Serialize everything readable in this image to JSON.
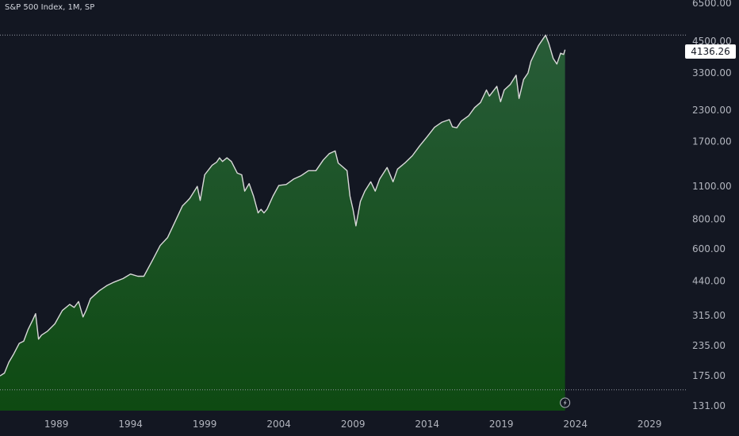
{
  "header": {
    "title": "S&P 500 Index, 1M, SP"
  },
  "last_price_label": "4136.26",
  "colors": {
    "background": "#131722",
    "line": "#d9d9d9",
    "fill_top": "#285c38",
    "fill_bottom": "#0e4a12",
    "axis_text": "#b2b5be",
    "dotted": "#9598a1"
  },
  "icons": {
    "bottom_marker": "lightning-bolt-icon"
  },
  "chart_data": {
    "type": "area",
    "yscale": "log",
    "ylim": [
      125,
      6700
    ],
    "xlim": [
      1985.2,
      2031.5
    ],
    "grid": false,
    "y_ticks": [
      {
        "value": 6500,
        "label": "6500.00"
      },
      {
        "value": 4500,
        "label": "4500.00"
      },
      {
        "value": 3300,
        "label": "3300.00"
      },
      {
        "value": 2300,
        "label": "2300.00"
      },
      {
        "value": 1700,
        "label": "1700.00"
      },
      {
        "value": 1100,
        "label": "1100.00"
      },
      {
        "value": 800,
        "label": "800.00"
      },
      {
        "value": 600,
        "label": "600.00"
      },
      {
        "value": 440,
        "label": "440.00"
      },
      {
        "value": 315,
        "label": "315.00"
      },
      {
        "value": 235,
        "label": "235.00"
      },
      {
        "value": 175,
        "label": "175.00"
      },
      {
        "value": 131,
        "label": "131.00"
      }
    ],
    "x_ticks": [
      {
        "value": 1989,
        "label": "1989"
      },
      {
        "value": 1994,
        "label": "1994"
      },
      {
        "value": 1999,
        "label": "1999"
      },
      {
        "value": 2004,
        "label": "2004"
      },
      {
        "value": 2009,
        "label": "2009"
      },
      {
        "value": 2014,
        "label": "2014"
      },
      {
        "value": 2019,
        "label": "2019"
      },
      {
        "value": 2024,
        "label": "2024"
      },
      {
        "value": 2029,
        "label": "2029"
      }
    ],
    "reference_lines": [
      {
        "value": 4766,
        "style": "dotted"
      },
      {
        "value": 153,
        "style": "dotted"
      }
    ],
    "last_price": 4136.26,
    "series": [
      {
        "x": [
          1985.2,
          1985.5,
          1985.8,
          1986.1,
          1986.5,
          1986.8,
          1987.1,
          1987.4,
          1987.6,
          1987.8,
          1988.0,
          1988.4,
          1988.9,
          1989.4,
          1989.9,
          1990.2,
          1990.5,
          1990.8,
          1991.0,
          1991.3,
          1991.9,
          1992.4,
          1992.9,
          1993.5,
          1994.0,
          1994.5,
          1994.9,
          1995.5,
          1996.0,
          1996.5,
          1997.0,
          1997.5,
          1997.8,
          1998.0,
          1998.5,
          1998.7,
          1999.0,
          1999.5,
          1999.8,
          2000.0,
          2000.2,
          2000.5,
          2000.8,
          2001.2,
          2001.5,
          2001.7,
          2002.0,
          2002.3,
          2002.6,
          2002.8,
          2003.0,
          2003.2,
          2003.6,
          2004.0,
          2004.5,
          2005.0,
          2005.5,
          2006.0,
          2006.5,
          2007.0,
          2007.4,
          2007.8,
          2008.0,
          2008.3,
          2008.6,
          2008.8,
          2009.0,
          2009.2,
          2009.5,
          2009.8,
          2010.2,
          2010.5,
          2010.8,
          2011.3,
          2011.7,
          2012.0,
          2012.5,
          2013.0,
          2013.5,
          2014.0,
          2014.5,
          2015.0,
          2015.5,
          2015.7,
          2016.0,
          2016.3,
          2016.8,
          2017.2,
          2017.6,
          2018.0,
          2018.2,
          2018.7,
          2018.95,
          2019.2,
          2019.6,
          2020.0,
          2020.2,
          2020.5,
          2020.8,
          2021.0,
          2021.5,
          2021.99,
          2022.2,
          2022.5,
          2022.75,
          2023.0,
          2023.2,
          2023.3
        ],
        "y": [
          175,
          180,
          200,
          215,
          240,
          245,
          275,
          300,
          320,
          250,
          260,
          270,
          290,
          330,
          350,
          340,
          360,
          310,
          330,
          370,
          400,
          420,
          435,
          450,
          470,
          460,
          460,
          540,
          620,
          670,
          780,
          910,
          950,
          980,
          1100,
          960,
          1230,
          1350,
          1390,
          1450,
          1400,
          1450,
          1400,
          1250,
          1230,
          1050,
          1130,
          1000,
          850,
          880,
          850,
          880,
          1000,
          1110,
          1120,
          1180,
          1220,
          1280,
          1280,
          1420,
          1510,
          1550,
          1380,
          1330,
          1280,
          1000,
          880,
          750,
          950,
          1050,
          1150,
          1050,
          1180,
          1320,
          1150,
          1300,
          1380,
          1480,
          1630,
          1780,
          1950,
          2050,
          2100,
          1960,
          1940,
          2070,
          2180,
          2360,
          2480,
          2800,
          2640,
          2900,
          2500,
          2800,
          2950,
          3230,
          2580,
          3100,
          3300,
          3700,
          4300,
          4766,
          4400,
          3800,
          3600,
          4000,
          3950,
          4136.26
        ]
      }
    ]
  }
}
